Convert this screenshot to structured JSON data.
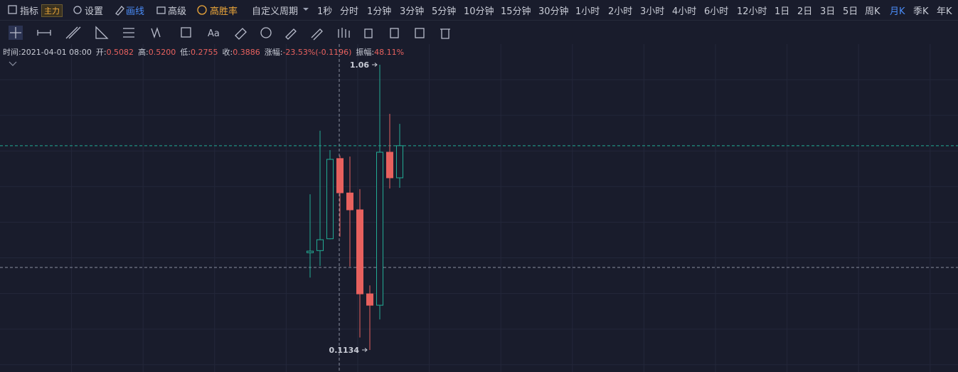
{
  "toolbar": {
    "indicator": "指标",
    "indicator_badge": "主力",
    "settings": "设置",
    "draw": "画线",
    "advanced": "高级",
    "win_rate": "高胜率",
    "custom_period": "自定义周期",
    "periods": [
      "1秒",
      "分时",
      "1分钟",
      "3分钟",
      "5分钟",
      "10分钟",
      "15分钟",
      "30分钟",
      "1小时",
      "2小时",
      "3小时",
      "4小时",
      "6小时",
      "12小时",
      "1日",
      "2日",
      "3日",
      "5日",
      "周K",
      "月K",
      "季K",
      "年K"
    ],
    "active_period": "月K"
  },
  "tools": {
    "text_tool": "Aa"
  },
  "chart_data": {
    "type": "candlestick",
    "log_scale": true,
    "up_color": "#22ab94",
    "down_color": "#e8615e",
    "info": [
      {
        "label": "时间:",
        "value": "2021-04-01 08:00"
      },
      {
        "label": "开:",
        "value": "0.5082"
      },
      {
        "label": "高:",
        "value": "0.5200"
      },
      {
        "label": "低:",
        "value": "0.2755"
      },
      {
        "label": "收:",
        "value": "0.3886"
      },
      {
        "label": "涨幅:",
        "value": "-23.53%(-0.1196)"
      },
      {
        "label": "振幅:",
        "value": "48.11%"
      }
    ],
    "candles": [
      {
        "open": 0.243,
        "high": 0.384,
        "low": 0.2,
        "close": 0.246
      },
      {
        "open": 0.247,
        "high": 0.632,
        "low": 0.219,
        "close": 0.269
      },
      {
        "open": 0.271,
        "high": 0.543,
        "low": 0.27,
        "close": 0.505
      },
      {
        "open": 0.5082,
        "high": 0.52,
        "low": 0.2755,
        "close": 0.3886
      },
      {
        "open": 0.388,
        "high": 0.516,
        "low": 0.218,
        "close": 0.34
      },
      {
        "open": 0.34,
        "high": 0.4,
        "low": 0.125,
        "close": 0.176
      },
      {
        "open": 0.176,
        "high": 0.188,
        "low": 0.1134,
        "close": 0.161
      },
      {
        "open": 0.161,
        "high": 1.06,
        "low": 0.144,
        "close": 0.534
      },
      {
        "open": 0.534,
        "high": 0.721,
        "low": 0.402,
        "close": 0.437
      },
      {
        "open": 0.437,
        "high": 0.667,
        "low": 0.404,
        "close": 0.562
      }
    ]
  }
}
